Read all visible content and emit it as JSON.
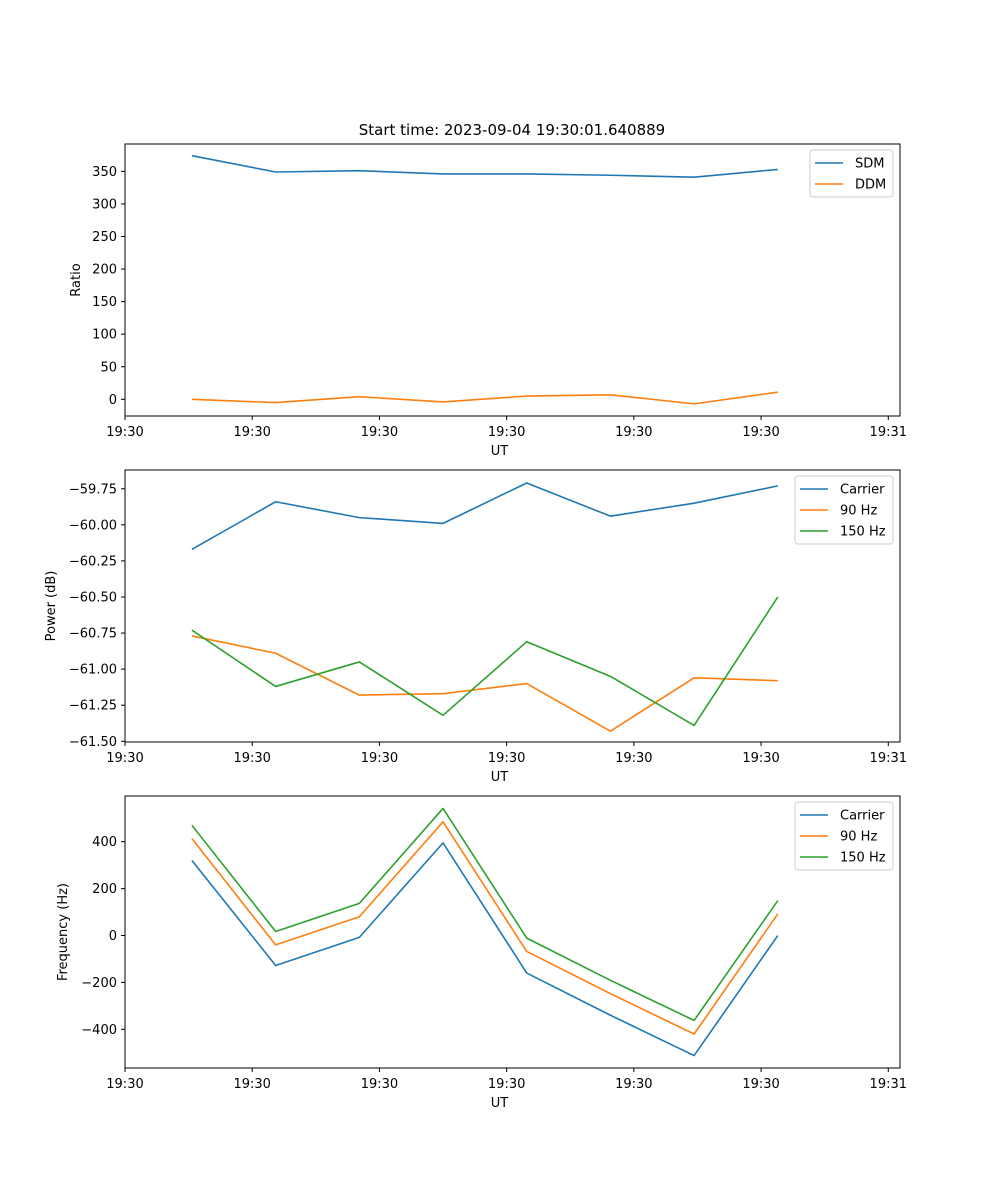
{
  "figure": {
    "title": "Start time: 2023-09-04 19:30:01.640889"
  },
  "colors": {
    "blue": "#1f77b4",
    "orange": "#ff7f0e",
    "green": "#2ca02c"
  },
  "chart_data": [
    {
      "type": "line",
      "title": "Start time: 2023-09-04 19:30:01.640889",
      "xlabel": "UT",
      "ylabel": "Ratio",
      "x": [
        1,
        2,
        3,
        4,
        5,
        6,
        7,
        8
      ],
      "xlim": [
        0.2,
        9.46
      ],
      "xticks": [
        0.2,
        1.72,
        3.24,
        4.76,
        6.28,
        7.8,
        9.32
      ],
      "xtick_labels": [
        "19:30",
        "19:30",
        "19:30",
        "19:30",
        "19:30",
        "19:30",
        "19:31"
      ],
      "ylim": [
        -25.6,
        392
      ],
      "yticks": [
        0,
        50,
        100,
        150,
        200,
        250,
        300,
        350
      ],
      "ytick_labels": [
        "0",
        "50",
        "100",
        "150",
        "200",
        "250",
        "300",
        "350"
      ],
      "legend_position": "top-right",
      "series": [
        {
          "name": "SDM",
          "color": "#1f77b4",
          "values": [
            374,
            349,
            351,
            346,
            346,
            344,
            341,
            353
          ]
        },
        {
          "name": "DDM",
          "color": "#ff7f0e",
          "values": [
            0,
            -5,
            4,
            -4,
            5,
            7,
            -7,
            11
          ]
        }
      ]
    },
    {
      "type": "line",
      "title": "",
      "xlabel": "UT",
      "ylabel": "Power (dB)",
      "x": [
        1,
        2,
        3,
        4,
        5,
        6,
        7,
        8
      ],
      "xlim": [
        0.2,
        9.46
      ],
      "xticks": [
        0.2,
        1.72,
        3.24,
        4.76,
        6.28,
        7.8,
        9.32
      ],
      "xtick_labels": [
        "19:30",
        "19:30",
        "19:30",
        "19:30",
        "19:30",
        "19:30",
        "19:31"
      ],
      "ylim": [
        -61.505,
        -59.62
      ],
      "yticks": [
        -61.5,
        -61.25,
        -61.0,
        -60.75,
        -60.5,
        -60.25,
        -60.0,
        -59.75
      ],
      "ytick_labels": [
        "−61.50",
        "−61.25",
        "−61.00",
        "−60.75",
        "−60.50",
        "−60.25",
        "−60.00",
        "−59.75"
      ],
      "legend_position": "top-right",
      "series": [
        {
          "name": "Carrier",
          "color": "#1f77b4",
          "values": [
            -60.17,
            -59.84,
            -59.95,
            -59.99,
            -59.71,
            -59.94,
            -59.85,
            -59.73
          ]
        },
        {
          "name": "90 Hz",
          "color": "#ff7f0e",
          "values": [
            -60.77,
            -60.89,
            -61.18,
            -61.17,
            -61.1,
            -61.43,
            -61.06,
            -61.08
          ]
        },
        {
          "name": "150 Hz",
          "color": "#2ca02c",
          "values": [
            -60.73,
            -61.12,
            -60.95,
            -61.32,
            -60.81,
            -61.05,
            -61.39,
            -60.5
          ]
        }
      ]
    },
    {
      "type": "line",
      "title": "",
      "xlabel": "UT",
      "ylabel": "Frequency (Hz)",
      "x": [
        1,
        2,
        3,
        4,
        5,
        6,
        7,
        8
      ],
      "xlim": [
        0.2,
        9.46
      ],
      "xticks": [
        0.2,
        1.72,
        3.24,
        4.76,
        6.28,
        7.8,
        9.32
      ],
      "xtick_labels": [
        "19:30",
        "19:30",
        "19:30",
        "19:30",
        "19:30",
        "19:30",
        "19:31"
      ],
      "ylim": [
        -565,
        595
      ],
      "yticks": [
        -400,
        -200,
        0,
        200,
        400
      ],
      "ytick_labels": [
        "−400",
        "−200",
        "0",
        "200",
        "400"
      ],
      "legend_position": "top-right",
      "series": [
        {
          "name": "Carrier",
          "color": "#1f77b4",
          "values": [
            320,
            -128,
            -8,
            395,
            -160,
            -340,
            -512,
            0
          ]
        },
        {
          "name": "90 Hz",
          "color": "#ff7f0e",
          "values": [
            413,
            -40,
            80,
            485,
            -68,
            -248,
            -420,
            92
          ]
        },
        {
          "name": "150 Hz",
          "color": "#2ca02c",
          "values": [
            470,
            17,
            137,
            542,
            -11,
            -191,
            -362,
            149
          ]
        }
      ]
    }
  ]
}
